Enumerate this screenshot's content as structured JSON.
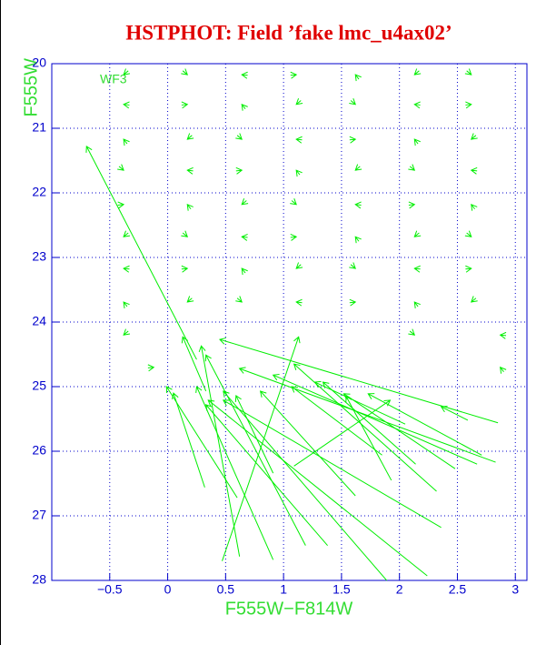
{
  "chart_data": {
    "type": "vector",
    "title": "HSTPHOT: Field ’fake lmc_u4ax02’",
    "annotation": "WF3",
    "x_label": "F555W−F814W",
    "y_label": "F555W",
    "color": "#00ee00",
    "grid": true,
    "xlim": [
      -1,
      3.1
    ],
    "ylim": [
      28,
      20
    ],
    "xticks": [
      {
        "value": -0.5,
        "label": "−0.5"
      },
      0,
      0.5,
      1,
      1.5,
      2,
      2.5,
      3
    ],
    "yticks": [
      20,
      21,
      22,
      23,
      24,
      25,
      26,
      27,
      28
    ],
    "arrows": {
      "x": [
        0.25,
        0.47,
        2.85,
        2.83,
        2.67,
        2.32,
        1.09,
        0.62,
        1.19,
        0.32,
        0.6,
        2.24,
        1.89,
        2.36,
        1.38,
        0.91,
        2.48,
        1.93,
        2.14,
        1.85,
        1.62,
        2.71,
        2.59,
        0.91,
        2.05,
        0.33,
        -0.34,
        0.13,
        0.69,
        1.06,
        1.65,
        2.17,
        2.58,
        -0.33,
        0.12,
        0.67,
        1.15,
        1.58,
        2.18,
        2.57,
        -0.35,
        0.21,
        0.6,
        1.16,
        1.57,
        2.16,
        2.66,
        -0.42,
        0.22,
        0.59,
        1.14,
        1.66,
        2.09,
        2.67,
        -0.43,
        0.2,
        0.68,
        1.07,
        1.67,
        2.08,
        2.65,
        -0.34,
        0.13,
        0.69,
        1.06,
        1.65,
        2.17,
        2.58,
        -0.33,
        0.12,
        0.67,
        1.15,
        1.58,
        2.18,
        2.57,
        -0.35,
        0.21,
        0.6,
        1.16,
        1.57,
        2.16,
        2.66,
        -0.34,
        2.09,
        2.92,
        -0.17,
        2.9
      ],
      "y": [
        24.58,
        27.7,
        25.56,
        26.17,
        26.2,
        26.62,
        26.23,
        27.63,
        27.46,
        26.56,
        26.72,
        27.93,
        28,
        27.18,
        27.46,
        27.68,
        26.27,
        26.45,
        26.2,
        26.06,
        26.69,
        26.06,
        25.52,
        26.34,
        25.58,
        25.07,
        20.11,
        20.11,
        20.18,
        20.18,
        20.24,
        20.11,
        20.11,
        20.64,
        20.64,
        20.7,
        20.57,
        20.57,
        20.64,
        20.64,
        21.24,
        21.11,
        21.11,
        21.18,
        21.18,
        21.24,
        21.11,
        21.59,
        21.66,
        21.66,
        21.72,
        21.59,
        21.59,
        21.66,
        22.19,
        22.25,
        22.12,
        22.12,
        22.19,
        22.19,
        22.25,
        22.62,
        22.62,
        22.69,
        22.69,
        22.75,
        22.62,
        22.62,
        23.18,
        23.18,
        23.24,
        23.11,
        23.11,
        23.18,
        23.18,
        23.76,
        23.63,
        23.63,
        23.7,
        23.7,
        23.76,
        23.63,
        24.14,
        24.14,
        24.21,
        24.71,
        24.77
      ],
      "x_end": [
        -0.7,
        1.13,
        0.45,
        0.62,
        0.91,
        1.09,
        1.92,
        0.29,
        0.33,
        0.05,
        -0.01,
        0.35,
        0.48,
        0.48,
        0.33,
        0.25,
        1.52,
        1.54,
        1.34,
        1.07,
        0.8,
        1.73,
        2.36,
        0.59,
        1.27,
        0.13,
        -0.38,
        0.17,
        0.64,
        1.11,
        1.62,
        2.13,
        2.62,
        -0.38,
        0.17,
        0.64,
        1.11,
        1.62,
        2.13,
        2.62,
        -0.38,
        0.17,
        0.64,
        1.11,
        1.62,
        2.13,
        2.62,
        -0.38,
        0.17,
        0.64,
        1.11,
        1.62,
        2.13,
        2.62,
        -0.38,
        0.17,
        0.64,
        1.11,
        1.62,
        2.13,
        2.62,
        -0.38,
        0.17,
        0.64,
        1.11,
        1.62,
        2.13,
        2.62,
        -0.38,
        0.17,
        0.64,
        1.11,
        1.62,
        2.13,
        2.62,
        -0.38,
        0.17,
        0.64,
        1.11,
        1.62,
        2.13,
        2.62,
        -0.38,
        2.13,
        2.87,
        -0.12,
        2.87
      ],
      "y_end": [
        21.28,
        24.23,
        24.27,
        24.72,
        24.82,
        24.65,
        25.21,
        24.37,
        24.51,
        25.1,
        25.0,
        25.21,
        25.07,
        25.21,
        25.28,
        25.0,
        25.11,
        25.15,
        24.93,
        25.0,
        25.07,
        25.11,
        25.31,
        25.14,
        24.93,
        24.23,
        20.17,
        20.17,
        20.17,
        20.17,
        20.17,
        20.17,
        20.17,
        20.63,
        20.63,
        20.63,
        20.63,
        20.63,
        20.63,
        20.63,
        21.17,
        21.17,
        21.17,
        21.17,
        21.17,
        21.17,
        21.17,
        21.65,
        21.65,
        21.65,
        21.65,
        21.65,
        21.65,
        21.65,
        22.18,
        22.18,
        22.18,
        22.18,
        22.18,
        22.18,
        22.18,
        22.68,
        22.68,
        22.68,
        22.68,
        22.68,
        22.68,
        22.68,
        23.17,
        23.17,
        23.17,
        23.17,
        23.17,
        23.17,
        23.17,
        23.69,
        23.69,
        23.69,
        23.69,
        23.69,
        23.69,
        23.69,
        24.2,
        24.2,
        24.2,
        24.7,
        24.7
      ]
    }
  }
}
